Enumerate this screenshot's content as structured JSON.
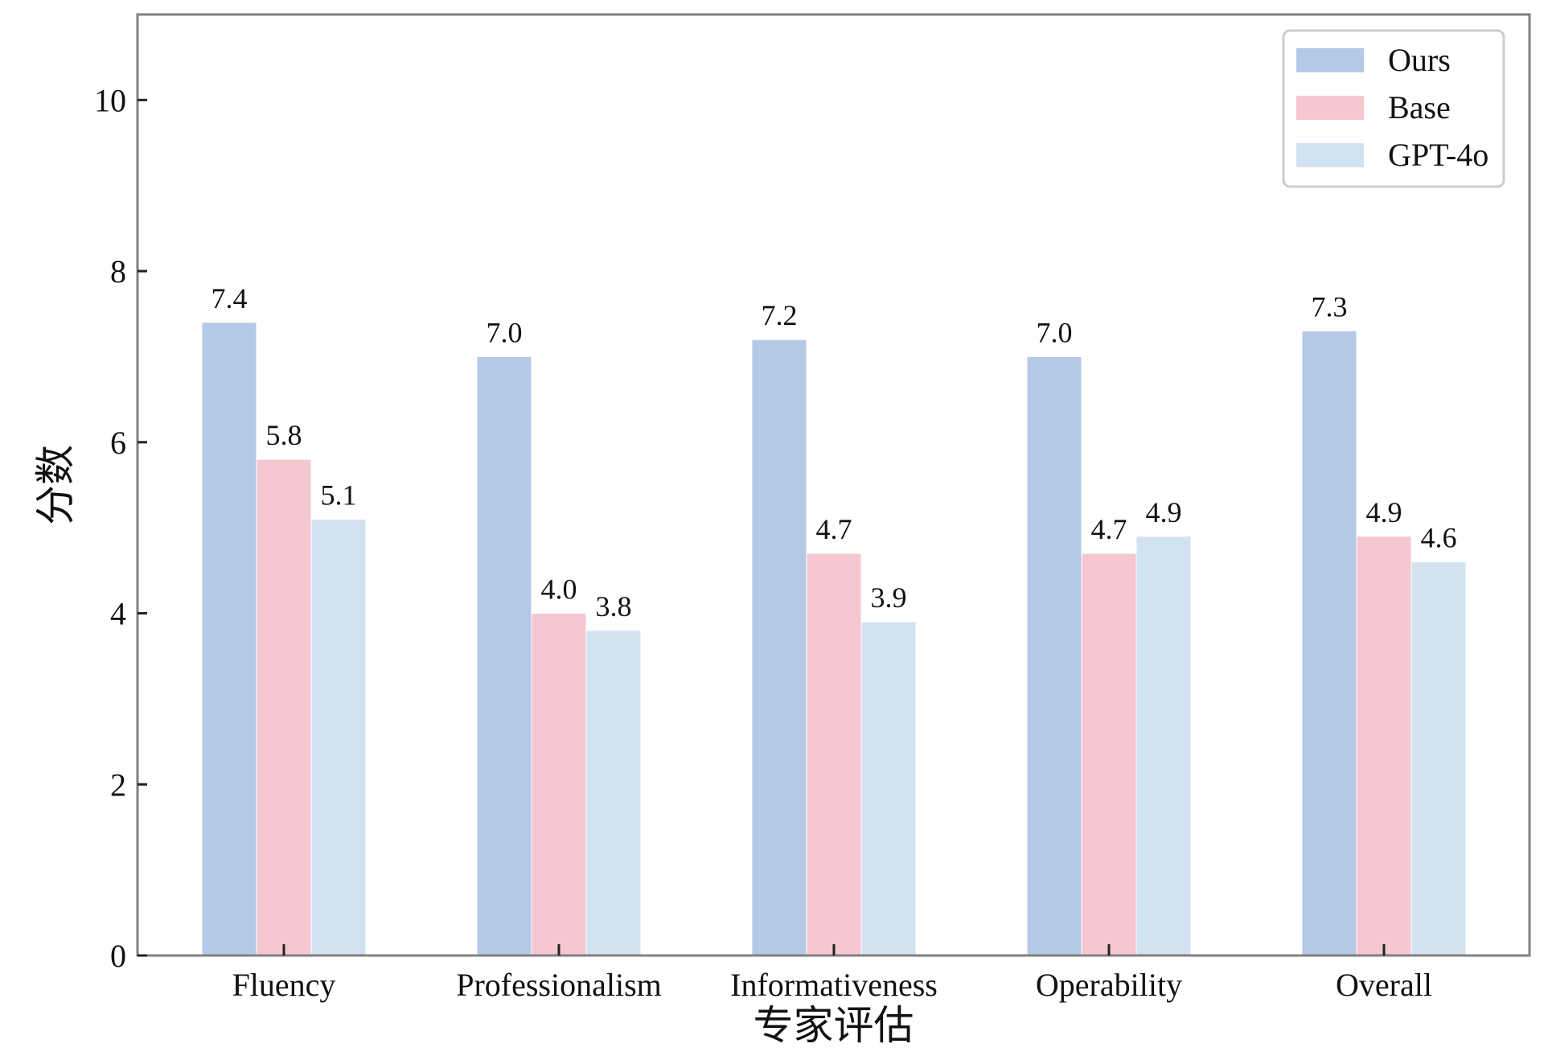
{
  "chart_data": {
    "type": "bar",
    "categories": [
      "Fluency",
      "Professionalism",
      "Informativeness",
      "Operability",
      "Overall"
    ],
    "series": [
      {
        "name": "Ours",
        "values": [
          7.4,
          7.0,
          7.2,
          7.0,
          7.3
        ],
        "color": "#b4c9e6"
      },
      {
        "name": "Base",
        "values": [
          5.8,
          4.0,
          4.7,
          4.7,
          4.9
        ],
        "color": "#f4c7d1"
      },
      {
        "name": "GPT-4o",
        "values": [
          5.1,
          3.8,
          3.9,
          4.9,
          4.6
        ],
        "color": "#d3e2f1"
      }
    ],
    "value_labels": [
      [
        "7.4",
        "7.0",
        "7.2",
        "7.0",
        "7.3"
      ],
      [
        "5.8",
        "4.0",
        "4.7",
        "4.7",
        "4.9"
      ],
      [
        "5.1",
        "3.8",
        "3.9",
        "4.9",
        "4.6"
      ]
    ],
    "xlabel": "专家评估",
    "ylabel": "分数",
    "ylim": [
      0,
      11
    ],
    "yticks": [
      0,
      2,
      4,
      6,
      8,
      10
    ],
    "ytick_labels": [
      "0",
      "2",
      "4",
      "6",
      "8",
      "10"
    ],
    "legend": {
      "position": "top-right"
    },
    "grid": false
  }
}
